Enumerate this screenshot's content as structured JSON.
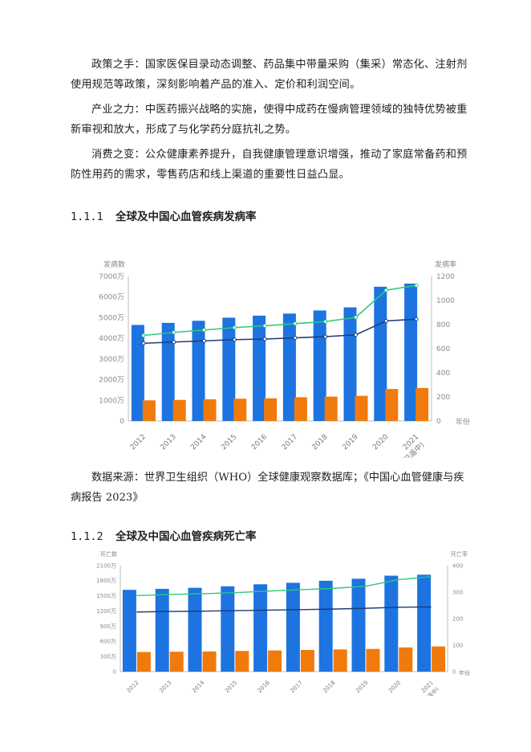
{
  "paragraphs": [
    "政策之手：国家医保目录动态调整、药品集中带量采购（集采）常态化、注射剂使用规范等政策，深刻影响着产品的准入、定价和利润空间。",
    "产业之力：中医药振兴战略的实施，使得中成药在慢病管理领域的独特优势被重新审视和放大，形成了与化学药分庭抗礼之势。",
    "消费之变：公众健康素养提升，自我健康管理意识增强，推动了家庭常备药和预防性用药的需求，零售药店和线上渠道的重要性日益凸显。"
  ],
  "section1": {
    "number": "1.1.1",
    "title": "全球及中国心血管疾病发病率"
  },
  "source_text": "数据来源：世界卫生组织（WHO）全球健康观察数据库；《中国心血管健康与疾病报告 2023》",
  "section2": {
    "number": "1.1.2",
    "title": "全球及中国心血管疾病死亡率"
  },
  "chart_data": [
    {
      "type": "bar",
      "left_axis_title": "发病数",
      "right_axis_title": "发病率",
      "x_suffix": "年份",
      "categories": [
        "2012",
        "2013",
        "2014",
        "2015",
        "2016",
        "2017",
        "2018",
        "2019",
        "2020",
        "2021"
      ],
      "last_category_note": "(已遥中)",
      "left_ticks": [
        "0",
        "1000万",
        "2000万",
        "3000万",
        "4000万",
        "5000万",
        "6000万",
        "7000万"
      ],
      "right_ticks": [
        "0",
        "200",
        "400",
        "600",
        "800",
        "1000",
        "1200"
      ],
      "ylim_left": [
        0,
        7000
      ],
      "ylim_right": [
        0,
        1200
      ],
      "series": [
        {
          "values": [
            4650,
            4750,
            4850,
            5000,
            5100,
            5200,
            5350,
            5500,
            6500,
            6650
          ],
          "axis": "left",
          "kind": "bar",
          "color": "#1d73e0"
        },
        {
          "values": [
            1000,
            1020,
            1050,
            1080,
            1100,
            1150,
            1180,
            1220,
            1550,
            1600
          ],
          "axis": "left",
          "kind": "bar",
          "color": "#f07b0c"
        },
        {
          "values": [
            710,
            735,
            755,
            775,
            790,
            808,
            825,
            860,
            1085,
            1125
          ],
          "axis": "right",
          "kind": "line",
          "color": "#2cc97a"
        },
        {
          "values": [
            645,
            655,
            665,
            675,
            680,
            690,
            700,
            715,
            830,
            845
          ],
          "axis": "right",
          "kind": "line",
          "color": "#1f3a78"
        }
      ]
    },
    {
      "type": "bar",
      "left_axis_title": "死亡数",
      "right_axis_title": "死亡率",
      "x_suffix": "年份",
      "categories": [
        "2012",
        "2013",
        "2014",
        "2015",
        "2016",
        "2017",
        "2018",
        "2019",
        "2020",
        "2021"
      ],
      "last_category_note": "(已遥中)",
      "left_ticks": [
        "0",
        "300万",
        "600万",
        "900万",
        "1200万",
        "1500万",
        "1800万",
        "2100万"
      ],
      "right_ticks": [
        "0",
        "100",
        "200",
        "300",
        "400"
      ],
      "ylim_left": [
        0,
        2100
      ],
      "ylim_right": [
        0,
        400
      ],
      "series": [
        {
          "values": [
            1620,
            1640,
            1660,
            1690,
            1730,
            1760,
            1800,
            1840,
            1900,
            1920
          ],
          "axis": "left",
          "kind": "bar",
          "color": "#1d73e0"
        },
        {
          "values": [
            390,
            395,
            400,
            410,
            420,
            430,
            440,
            450,
            480,
            500
          ],
          "axis": "left",
          "kind": "bar",
          "color": "#f07b0c"
        },
        {
          "values": [
            287,
            291,
            294,
            298,
            304,
            309,
            314,
            322,
            347,
            358
          ],
          "axis": "right",
          "kind": "line",
          "color": "#2cc97a"
        },
        {
          "values": [
            225,
            227,
            228,
            230,
            232,
            234,
            236,
            239,
            243,
            244
          ],
          "axis": "right",
          "kind": "line",
          "color": "#1f3a78"
        }
      ]
    }
  ]
}
